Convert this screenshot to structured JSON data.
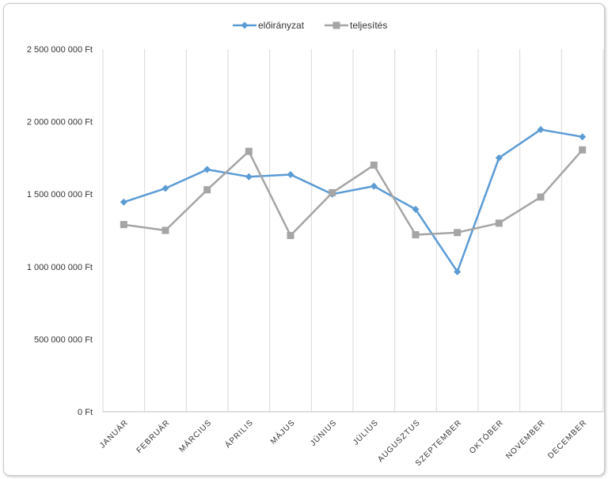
{
  "chart_data": {
    "type": "line",
    "title": "",
    "xlabel": "",
    "ylabel": "",
    "categories": [
      "JANUÁR",
      "FEBRUÁR",
      "MÁRCIUS",
      "ÁPRILIS",
      "MÁJUS",
      "JÚNIUS",
      "JÚLIUS",
      "AUGUSZTUS",
      "SZEPTEMBER",
      "OKTÓBER",
      "NOVEMBER",
      "DECEMBER"
    ],
    "ylim": [
      0,
      2500000000
    ],
    "y_ticks": [
      0,
      500000000,
      1000000000,
      1500000000,
      2000000000,
      2500000000
    ],
    "y_tick_labels": [
      "0 Ft",
      "500 000 000 Ft",
      "1 000 000 000 Ft",
      "1 500 000 000 Ft",
      "2 000 000 000 Ft",
      "2 500 000 000 Ft"
    ],
    "grid": "vertical",
    "legend_position": "top",
    "series": [
      {
        "name": "előirányzat",
        "color": "#5b9bd5",
        "marker": "diamond",
        "values": [
          1445000000,
          1540000000,
          1670000000,
          1620000000,
          1635000000,
          1500000000,
          1555000000,
          1395000000,
          965000000,
          1750000000,
          1945000000,
          1895000000
        ]
      },
      {
        "name": "teljesítés",
        "color": "#a5a5a5",
        "marker": "square",
        "values": [
          1290000000,
          1250000000,
          1530000000,
          1795000000,
          1215000000,
          1510000000,
          1700000000,
          1220000000,
          1235000000,
          1300000000,
          1480000000,
          1805000000
        ]
      }
    ]
  }
}
